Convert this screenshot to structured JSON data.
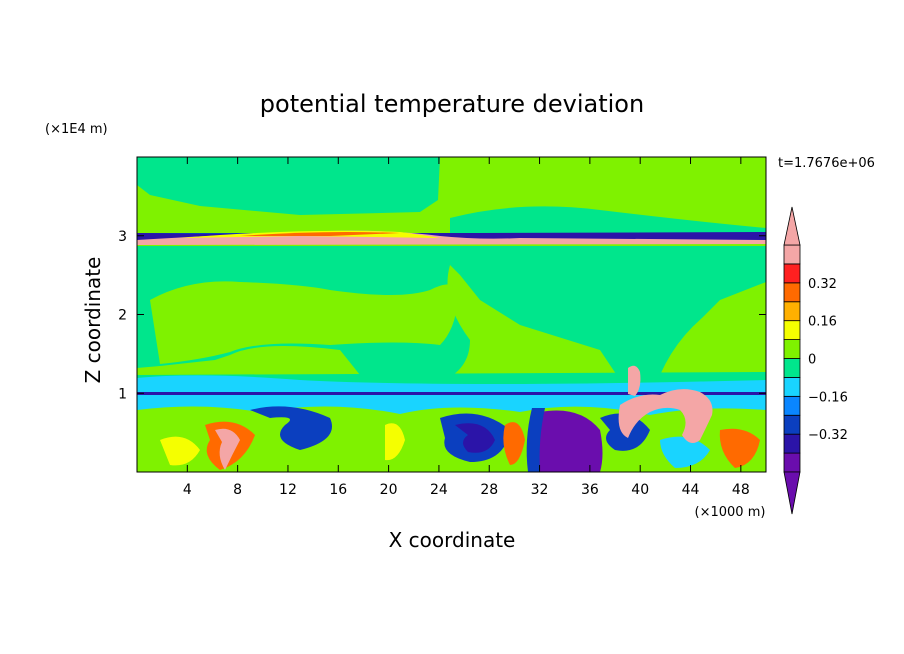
{
  "chart_data": {
    "type": "heatmap",
    "title": "potential temperature deviation",
    "xlabel": "X coordinate",
    "ylabel": "Z coordinate",
    "x_unit": "(×1000 m)",
    "y_unit": "(×1E4 m)",
    "time_label": "t=1.7676e+06",
    "xlim": [
      0,
      50
    ],
    "ylim": [
      0,
      4
    ],
    "x_ticks": [
      4,
      8,
      12,
      16,
      20,
      24,
      28,
      32,
      36,
      40,
      44,
      48
    ],
    "y_ticks": [
      1,
      2,
      3
    ],
    "colorbar": {
      "levels": [
        -0.48,
        -0.4,
        -0.32,
        -0.24,
        -0.16,
        -0.08,
        0,
        0.08,
        0.16,
        0.24,
        0.32,
        0.4,
        0.48
      ],
      "colors": [
        "#6a0dad",
        "#2b14a8",
        "#0b3fbf",
        "#0a86ff",
        "#19d4ff",
        "#00e68c",
        "#7ff200",
        "#f5ff00",
        "#ffb000",
        "#ff6a00",
        "#ff2020",
        "#f4a6a6"
      ],
      "labels": [
        {
          "value": 0.32,
          "text": "0.32"
        },
        {
          "value": 0.16,
          "text": "0.16"
        },
        {
          "value": 0,
          "text": "0"
        },
        {
          "value": -0.16,
          "text": "−0.16"
        },
        {
          "value": -0.32,
          "text": "−0.32"
        }
      ],
      "extend": "both"
    }
  }
}
